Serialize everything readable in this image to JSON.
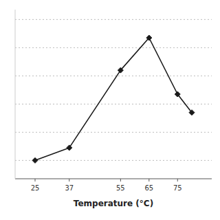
{
  "chart_data": {
    "type": "line",
    "x": [
      25,
      37,
      55,
      65,
      75,
      80
    ],
    "values": [
      8,
      17,
      72,
      95,
      55,
      42
    ],
    "xlim": [
      18,
      87
    ],
    "ylim": [
      -5,
      115
    ],
    "xticks": [
      25,
      37,
      55,
      65,
      75
    ],
    "yticks": [
      8,
      28,
      48,
      68,
      88,
      108
    ],
    "x_label": "Temperature (°C)",
    "color": "#1a1a1a",
    "marker": "diamond",
    "grid": true,
    "tick_labels": "x"
  }
}
